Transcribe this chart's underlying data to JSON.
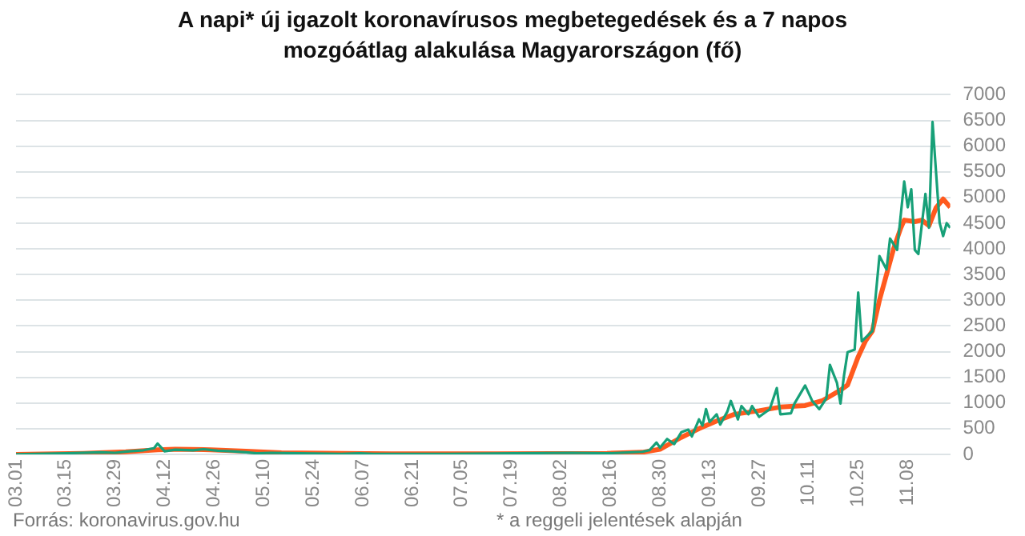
{
  "chart_data": {
    "type": "line",
    "title": "A napi* új igazolt koronavírusos megbetegedések és a 7 napos mozgóátlag alakulása Magyarországon (fő)",
    "xlim": [
      "--03-01",
      "--11-20"
    ],
    "xticks": [
      {
        "value": "--03-01",
        "label": "03.01"
      },
      {
        "value": "--03-15",
        "label": "03.15"
      },
      {
        "value": "--03-29",
        "label": "03.29"
      },
      {
        "value": "--04-12",
        "label": "04.12"
      },
      {
        "value": "--04-26",
        "label": "04.26"
      },
      {
        "value": "--05-10",
        "label": "05.10"
      },
      {
        "value": "--05-24",
        "label": "05.24"
      },
      {
        "value": "--06-07",
        "label": "06.07"
      },
      {
        "value": "--06-21",
        "label": "06.21"
      },
      {
        "value": "--07-05",
        "label": "07.05"
      },
      {
        "value": "--07-19",
        "label": "07.19"
      },
      {
        "value": "--08-02",
        "label": "08.02"
      },
      {
        "value": "--08-16",
        "label": "08.16"
      },
      {
        "value": "--08-30",
        "label": "08.30"
      },
      {
        "value": "--09-13",
        "label": "09.13"
      },
      {
        "value": "--09-27",
        "label": "09.27"
      },
      {
        "value": "--10-11",
        "label": "10.11"
      },
      {
        "value": "--10-25",
        "label": "10.25"
      },
      {
        "value": "--11-08",
        "label": "11.08"
      }
    ],
    "ylim": [
      0,
      7000
    ],
    "yticks": [
      0,
      500,
      1000,
      1500,
      2000,
      2500,
      3000,
      3500,
      4000,
      4500,
      5000,
      5500,
      6000,
      6500,
      7000
    ],
    "grid": "y",
    "legend": false,
    "marker": "none",
    "line_style": "solid",
    "series": [
      {
        "color": "#17a078",
        "x": [
          "--03-01",
          "--03-15",
          "--03-25",
          "--03-29",
          "--04-02",
          "--04-06",
          "--04-09",
          "--04-10",
          "--04-12",
          "--04-15",
          "--04-20",
          "--04-23",
          "--04-27",
          "--05-01",
          "--05-05",
          "--05-08",
          "--05-12",
          "--05-20",
          "--06-01",
          "--06-06",
          "--06-10",
          "--07-01",
          "--07-20",
          "--08-05",
          "--08-15",
          "--08-25",
          "--08-27",
          "--08-29",
          "--08-30",
          "--09-01",
          "--09-03",
          "--09-05",
          "--09-07",
          "--09-08",
          "--09-10",
          "--09-11",
          "--09-12",
          "--09-13",
          "--09-15",
          "--09-16",
          "--09-18",
          "--09-19",
          "--09-21",
          "--09-22",
          "--09-24",
          "--09-25",
          "--09-27",
          "--09-30",
          "--10-02",
          "--10-03",
          "--10-06",
          "--10-07",
          "--10-10",
          "--10-12",
          "--10-14",
          "--10-16",
          "--10-17",
          "--10-19",
          "--10-20",
          "--10-21",
          "--10-22",
          "--10-24",
          "--10-25",
          "--10-26",
          "--10-29",
          "--10-31",
          "--11-02",
          "--11-03",
          "--11-05",
          "--11-07",
          "--11-08",
          "--11-09",
          "--11-10",
          "--11-11",
          "--11-13",
          "--11-14",
          "--11-15",
          "--11-17",
          "--11-18",
          "--11-19",
          "--11-20"
        ],
        "values": [
          0,
          20,
          40,
          30,
          60,
          80,
          120,
          210,
          60,
          90,
          80,
          100,
          70,
          60,
          40,
          20,
          30,
          20,
          10,
          20,
          10,
          10,
          20,
          30,
          20,
          50,
          80,
          230,
          130,
          300,
          200,
          430,
          480,
          350,
          680,
          560,
          880,
          630,
          780,
          580,
          830,
          1040,
          680,
          940,
          780,
          940,
          730,
          880,
          1290,
          780,
          800,
          990,
          1340,
          1040,
          880,
          1090,
          1740,
          1390,
          990,
          1540,
          1990,
          2040,
          3150,
          2200,
          2400,
          3860,
          3600,
          4200,
          3980,
          5310,
          4810,
          5160,
          3980,
          3900,
          5070,
          4410,
          6470,
          4510,
          4250,
          4500,
          4410
        ]
      },
      {
        "color": "#ff5a1e",
        "x": [
          "--03-01",
          "--03-20",
          "--04-01",
          "--04-10",
          "--04-15",
          "--04-25",
          "--05-05",
          "--05-15",
          "--06-01",
          "--06-15",
          "--07-15",
          "--08-15",
          "--08-25",
          "--08-30",
          "--09-05",
          "--09-10",
          "--09-15",
          "--09-20",
          "--09-27",
          "--10-03",
          "--10-10",
          "--10-15",
          "--10-20",
          "--10-22",
          "--10-25",
          "--10-27",
          "--10-29",
          "--10-31",
          "--11-02",
          "--11-04",
          "--11-06",
          "--11-07",
          "--11-10",
          "--11-12",
          "--11-14",
          "--11-16",
          "--11-18",
          "--11-20"
        ],
        "values": [
          0,
          20,
          50,
          90,
          100,
          90,
          60,
          30,
          20,
          10,
          10,
          20,
          40,
          100,
          330,
          500,
          650,
          780,
          850,
          920,
          950,
          1050,
          1250,
          1350,
          1900,
          2200,
          2400,
          3000,
          3500,
          4000,
          4400,
          4560,
          4530,
          4560,
          4450,
          4800,
          4970,
          4810
        ]
      }
    ],
    "annotations": [
      "Forrás: koronavirus.gov.hu",
      "* a reggeli jelentések alapján"
    ]
  }
}
